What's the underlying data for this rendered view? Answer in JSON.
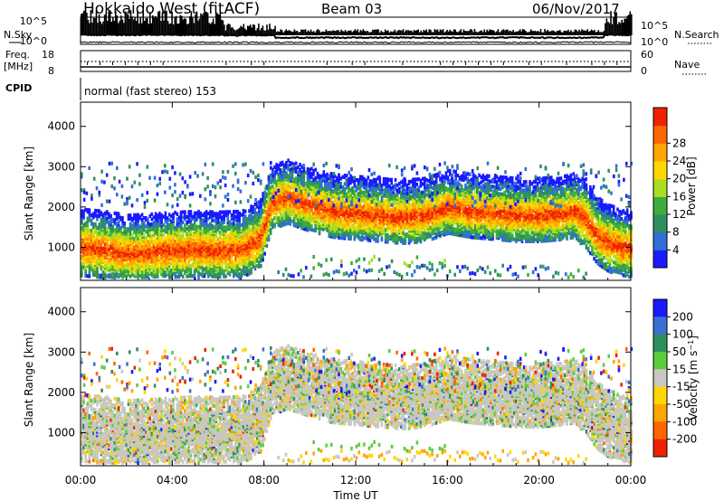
{
  "header": {
    "title": "Hokkaido West (fitACF)",
    "beam": "Beam 03",
    "date": "06/Nov/2017"
  },
  "left_labels": {
    "nsky": "N.Sky",
    "freq_line1": "Freq.",
    "freq_line2": "[MHz]",
    "cpid": "CPID"
  },
  "right_labels": {
    "nsearch": "N.Search",
    "nave": "Nave"
  },
  "noise_axis": {
    "left_top": "10^5",
    "left_bottom": "10^0",
    "right_top": "10^5",
    "right_bottom": "10^0"
  },
  "freq_axis": {
    "left_top": "18",
    "left_bottom": "8",
    "right_top": "60",
    "right_bottom": "0"
  },
  "cpid_text": "normal (fast stereo) 153",
  "xaxis": {
    "label": "Time UT",
    "ticks": [
      "00:00",
      "04:00",
      "08:00",
      "12:00",
      "16:00",
      "20:00",
      "00:00"
    ]
  },
  "colors": {
    "power": [
      "#1a1aff",
      "#2f6fd6",
      "#2f8f5f",
      "#3cae3c",
      "#aadd22",
      "#ffd700",
      "#ffa500",
      "#ff6600",
      "#ee2200"
    ],
    "velocity": [
      "#1a1aff",
      "#3a6fd6",
      "#2f8f5f",
      "#5ccc3c",
      "#c8c8c0",
      "#ffd700",
      "#ffa500",
      "#ff6600",
      "#ee2200"
    ]
  },
  "chart_data": [
    {
      "type": "heatmap",
      "panel": "power",
      "ylabel": "Slant Range [km]",
      "xlabel": "",
      "xlim": [
        0,
        24
      ],
      "ylim": [
        180,
        4600
      ],
      "yticks": [
        "1000",
        "2000",
        "3000",
        "4000"
      ],
      "colorbar": {
        "label": "Power [dB]",
        "ticks": [
          "4",
          "8",
          "12",
          "16",
          "20",
          "24",
          "28"
        ]
      },
      "main_band": {
        "x": [
          0,
          1,
          2,
          3,
          4,
          5,
          6,
          7,
          7.8,
          8.3,
          9,
          10,
          11,
          12,
          13,
          14,
          15,
          15.5,
          16,
          17,
          18,
          19,
          20,
          21,
          21.5,
          22,
          22.5,
          23,
          24
        ],
        "center_km": [
          1000,
          950,
          850,
          880,
          920,
          950,
          930,
          950,
          1200,
          2100,
          2250,
          2050,
          1900,
          1850,
          1800,
          1750,
          1800,
          1900,
          2000,
          1900,
          1850,
          1800,
          1800,
          1850,
          1900,
          1700,
          1300,
          1100,
          950
        ]
      }
    },
    {
      "type": "heatmap",
      "panel": "velocity",
      "ylabel": "Slant Range [km]",
      "xlabel": "Time UT",
      "xlim": [
        0,
        24
      ],
      "ylim": [
        180,
        4600
      ],
      "yticks": [
        "1000",
        "2000",
        "3000",
        "4000"
      ],
      "colorbar": {
        "label": "Velocity [m s^-1]",
        "ticks": [
          "200",
          "100",
          "50",
          "15",
          "-15",
          "-50",
          "-100",
          "-200"
        ]
      }
    }
  ]
}
